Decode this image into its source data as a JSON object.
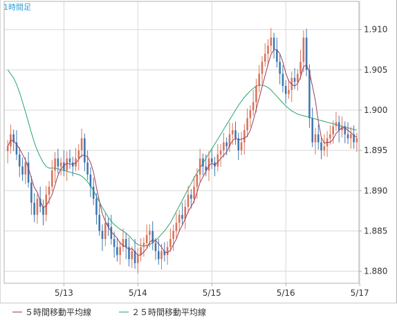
{
  "chart_data": {
    "type": "candlestick",
    "timeframe_label": "1時間足",
    "ylim": [
      1.8785,
      1.9135
    ],
    "yticks": [
      1.88,
      1.885,
      1.89,
      1.895,
      1.9,
      1.905,
      1.91
    ],
    "ytick_labels": [
      "1.880",
      "1.885",
      "1.890",
      "1.895",
      "1.900",
      "1.905",
      "1.910"
    ],
    "xtick_labels": [
      "5/13",
      "5/14",
      "5/15",
      "5/16",
      "5/17"
    ],
    "xtick_bar_index": [
      19,
      44,
      69,
      94,
      119
    ],
    "grid": true,
    "colors": {
      "up": "#d9735a",
      "down": "#3f76b0",
      "ma5": "#9b3b5a",
      "ma25": "#27a36a",
      "grid": "#d8d8d8",
      "axis": "#b0b0b0"
    },
    "legend": [
      {
        "label": "５時間移動平均線",
        "color": "#9b3b5a"
      },
      {
        "label": "２５時間移動平均線",
        "color": "#27a36a"
      }
    ],
    "candles_close": [
      1.8955,
      1.897,
      1.896,
      1.8945,
      1.893,
      1.892,
      1.8935,
      1.891,
      1.8885,
      1.887,
      1.889,
      1.888,
      1.887,
      1.8895,
      1.8905,
      1.8925,
      1.894,
      1.893,
      1.8935,
      1.8925,
      1.894,
      1.8935,
      1.893,
      1.894,
      1.895,
      1.8965,
      1.8935,
      1.892,
      1.8905,
      1.889,
      1.887,
      1.885,
      1.884,
      1.886,
      1.8855,
      1.884,
      1.883,
      1.882,
      1.883,
      1.884,
      1.883,
      1.8815,
      1.8825,
      1.881,
      1.882,
      1.883,
      1.8835,
      1.8845,
      1.885,
      1.8835,
      1.8825,
      1.8815,
      1.8825,
      1.882,
      1.883,
      1.884,
      1.885,
      1.886,
      1.887,
      1.8865,
      1.888,
      1.8895,
      1.889,
      1.8905,
      1.892,
      1.894,
      1.893,
      1.8925,
      1.894,
      1.8935,
      1.893,
      1.8945,
      1.895,
      1.896,
      1.8955,
      1.897,
      1.8975,
      1.8965,
      1.895,
      1.896,
      1.8975,
      1.899,
      1.9,
      1.901,
      1.903,
      1.9045,
      1.906,
      1.907,
      1.908,
      1.909,
      1.9075,
      1.906,
      1.9045,
      1.903,
      1.902,
      1.9025,
      1.904,
      1.9035,
      1.9045,
      1.906,
      1.909,
      1.905,
      1.899,
      1.896,
      1.897,
      1.896,
      1.895,
      1.8955,
      1.8965,
      1.897,
      1.898,
      1.8985,
      1.8975,
      1.898,
      1.897,
      1.8965,
      1.897,
      1.896,
      1.8965
    ],
    "ma25": [
      1.905,
      1.9045,
      1.904,
      1.9032,
      1.9022,
      1.901,
      1.8998,
      1.8985,
      1.8972,
      1.896,
      1.895,
      1.8942,
      1.8935,
      1.893,
      1.8928,
      1.8928,
      1.8928,
      1.8927,
      1.8926,
      1.8925,
      1.8924,
      1.8923,
      1.8922,
      1.8921,
      1.892,
      1.8918,
      1.8915,
      1.8911,
      1.8906,
      1.89,
      1.8893,
      1.8886,
      1.8879,
      1.8873,
      1.8867,
      1.8862,
      1.8858,
      1.8855,
      1.8852,
      1.885,
      1.8847,
      1.8844,
      1.884,
      1.8836,
      1.8833,
      1.8832,
      1.8831,
      1.8832,
      1.8833,
      1.8835,
      1.8838,
      1.8842,
      1.8846,
      1.885,
      1.8855,
      1.886,
      1.8867,
      1.8874,
      1.8881,
      1.8888,
      1.8895,
      1.8902,
      1.8909,
      1.8916,
      1.8922,
      1.8928,
      1.8934,
      1.894,
      1.8946,
      1.8952,
      1.8958,
      1.8964,
      1.897,
      1.8976,
      1.8982,
      1.8988,
      1.8994,
      1.9,
      1.9006,
      1.9011,
      1.9016,
      1.902,
      1.9024,
      1.9027,
      1.903,
      1.9031,
      1.9031,
      1.903,
      1.9028,
      1.9025,
      1.9021,
      1.9017,
      1.9013,
      1.9009,
      1.9005,
      1.9002,
      1.8999,
      1.8997,
      1.8995,
      1.8994,
      1.8993,
      1.8992,
      1.8991,
      1.899,
      1.8989,
      1.8988,
      1.8987,
      1.8986,
      1.8985,
      1.8984,
      1.8983,
      1.8982,
      1.8981,
      1.898,
      1.8979,
      1.8978,
      1.8977,
      1.8976,
      1.8975
    ]
  }
}
